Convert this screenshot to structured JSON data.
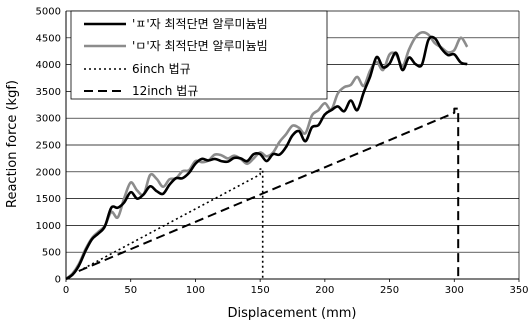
{
  "chart_data": {
    "type": "line",
    "xlabel": "Displacement (mm)",
    "ylabel": "Reaction force (kgf)",
    "xlim": [
      0,
      350
    ],
    "ylim": [
      0,
      5000
    ],
    "xticks": [
      0,
      50,
      100,
      150,
      200,
      250,
      300,
      350
    ],
    "yticks": [
      0,
      500,
      1000,
      1500,
      2000,
      2500,
      3000,
      3500,
      4000,
      4500,
      5000
    ],
    "grid": "horizontal",
    "legend_position": "top-left",
    "series": [
      {
        "name": "'ㅍ'자 최적단면 알루미늄빔",
        "color": "#000000",
        "style": "solid",
        "x": [
          0,
          5,
          10,
          15,
          20,
          25,
          30,
          35,
          40,
          45,
          50,
          55,
          60,
          65,
          70,
          75,
          80,
          85,
          90,
          95,
          100,
          105,
          110,
          115,
          120,
          125,
          130,
          135,
          140,
          145,
          150,
          155,
          160,
          165,
          170,
          175,
          180,
          185,
          190,
          195,
          200,
          205,
          210,
          215,
          220,
          225,
          230,
          235,
          240,
          245,
          250,
          255,
          260,
          265,
          270,
          275,
          280,
          285,
          290,
          295,
          300,
          305,
          310
        ],
        "y": [
          0,
          80,
          250,
          520,
          740,
          850,
          980,
          1330,
          1330,
          1430,
          1620,
          1500,
          1580,
          1730,
          1640,
          1590,
          1760,
          1880,
          1880,
          1980,
          2150,
          2240,
          2210,
          2240,
          2200,
          2190,
          2260,
          2250,
          2200,
          2330,
          2330,
          2200,
          2330,
          2320,
          2460,
          2680,
          2760,
          2570,
          2830,
          2870,
          3070,
          3150,
          3220,
          3130,
          3330,
          3150,
          3480,
          3780,
          4140,
          3950,
          4020,
          4220,
          3900,
          4130,
          4010,
          4000,
          4460,
          4490,
          4300,
          4180,
          4190,
          4040,
          4010
        ]
      },
      {
        "name": "'ㅁ'자 최적단면 알루미늄빔",
        "color": "#8c8c8c",
        "style": "solid",
        "x": [
          0,
          5,
          10,
          15,
          20,
          25,
          30,
          35,
          40,
          45,
          50,
          55,
          60,
          65,
          70,
          75,
          80,
          85,
          90,
          95,
          100,
          105,
          110,
          115,
          120,
          125,
          130,
          135,
          140,
          145,
          150,
          155,
          160,
          165,
          170,
          175,
          180,
          185,
          190,
          195,
          200,
          205,
          210,
          215,
          220,
          225,
          230,
          235,
          240,
          245,
          250,
          255,
          260,
          265,
          270,
          275,
          280,
          285,
          290,
          295,
          300,
          305,
          310
        ],
        "y": [
          0,
          100,
          280,
          550,
          760,
          880,
          990,
          1250,
          1150,
          1510,
          1800,
          1650,
          1580,
          1940,
          1870,
          1720,
          1860,
          1880,
          2010,
          2030,
          2200,
          2180,
          2210,
          2320,
          2310,
          2250,
          2300,
          2240,
          2150,
          2250,
          2360,
          2290,
          2360,
          2560,
          2700,
          2860,
          2820,
          2720,
          3050,
          3150,
          3280,
          3160,
          3460,
          3580,
          3620,
          3770,
          3600,
          3890,
          4050,
          3900,
          4190,
          4190,
          3970,
          4280,
          4510,
          4600,
          4560,
          4400,
          4320,
          4230,
          4270,
          4500,
          4330
        ]
      },
      {
        "name": "6inch 법규",
        "color": "#000000",
        "style": "dotted",
        "x": [
          10,
          150,
          150,
          152,
          152
        ],
        "y": [
          150,
          1950,
          2050,
          2050,
          0
        ]
      },
      {
        "name": "12inch 법규",
        "color": "#000000",
        "style": "dashed",
        "x": [
          10,
          300,
          300,
          303,
          303
        ],
        "y": [
          150,
          3100,
          3180,
          3180,
          0
        ]
      }
    ]
  }
}
